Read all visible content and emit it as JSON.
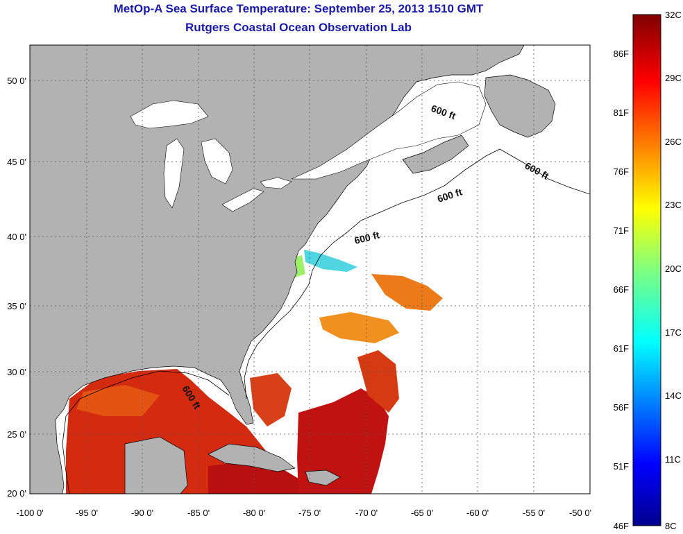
{
  "header": {
    "title": "MetOp-A Sea Surface Temperature:  September 25, 2013 1510 GMT",
    "subtitle": "Rutgers Coastal Ocean Observation Lab"
  },
  "axes": {
    "x_ticks": [
      "-100 0'",
      "-95 0'",
      "-90 0'",
      "-85 0'",
      "-80 0'",
      "-75 0'",
      "-70 0'",
      "-65 0'",
      "-60 0'",
      "-55 0'",
      "-50 0'"
    ],
    "y_ticks": [
      "50 0'",
      "45 0'",
      "40 0'",
      "35 0'",
      "30 0'",
      "25 0'",
      "20 0'"
    ]
  },
  "isobath_labels": [
    "600 ft",
    "600 ft",
    "600 ft",
    "600 ft",
    "600 ft"
  ],
  "colorbar": {
    "celsius": [
      "32C",
      "29C",
      "26C",
      "23C",
      "20C",
      "17C",
      "14C",
      "11C",
      "8C"
    ],
    "fahrenheit": [
      "86F",
      "81F",
      "76F",
      "71F",
      "66F",
      "61F",
      "56F",
      "51F",
      "46F"
    ]
  },
  "colors": {
    "land": "#b2b2b2",
    "title": "#1a1aa8",
    "warm": "#c81414",
    "hot": "#a00808"
  }
}
